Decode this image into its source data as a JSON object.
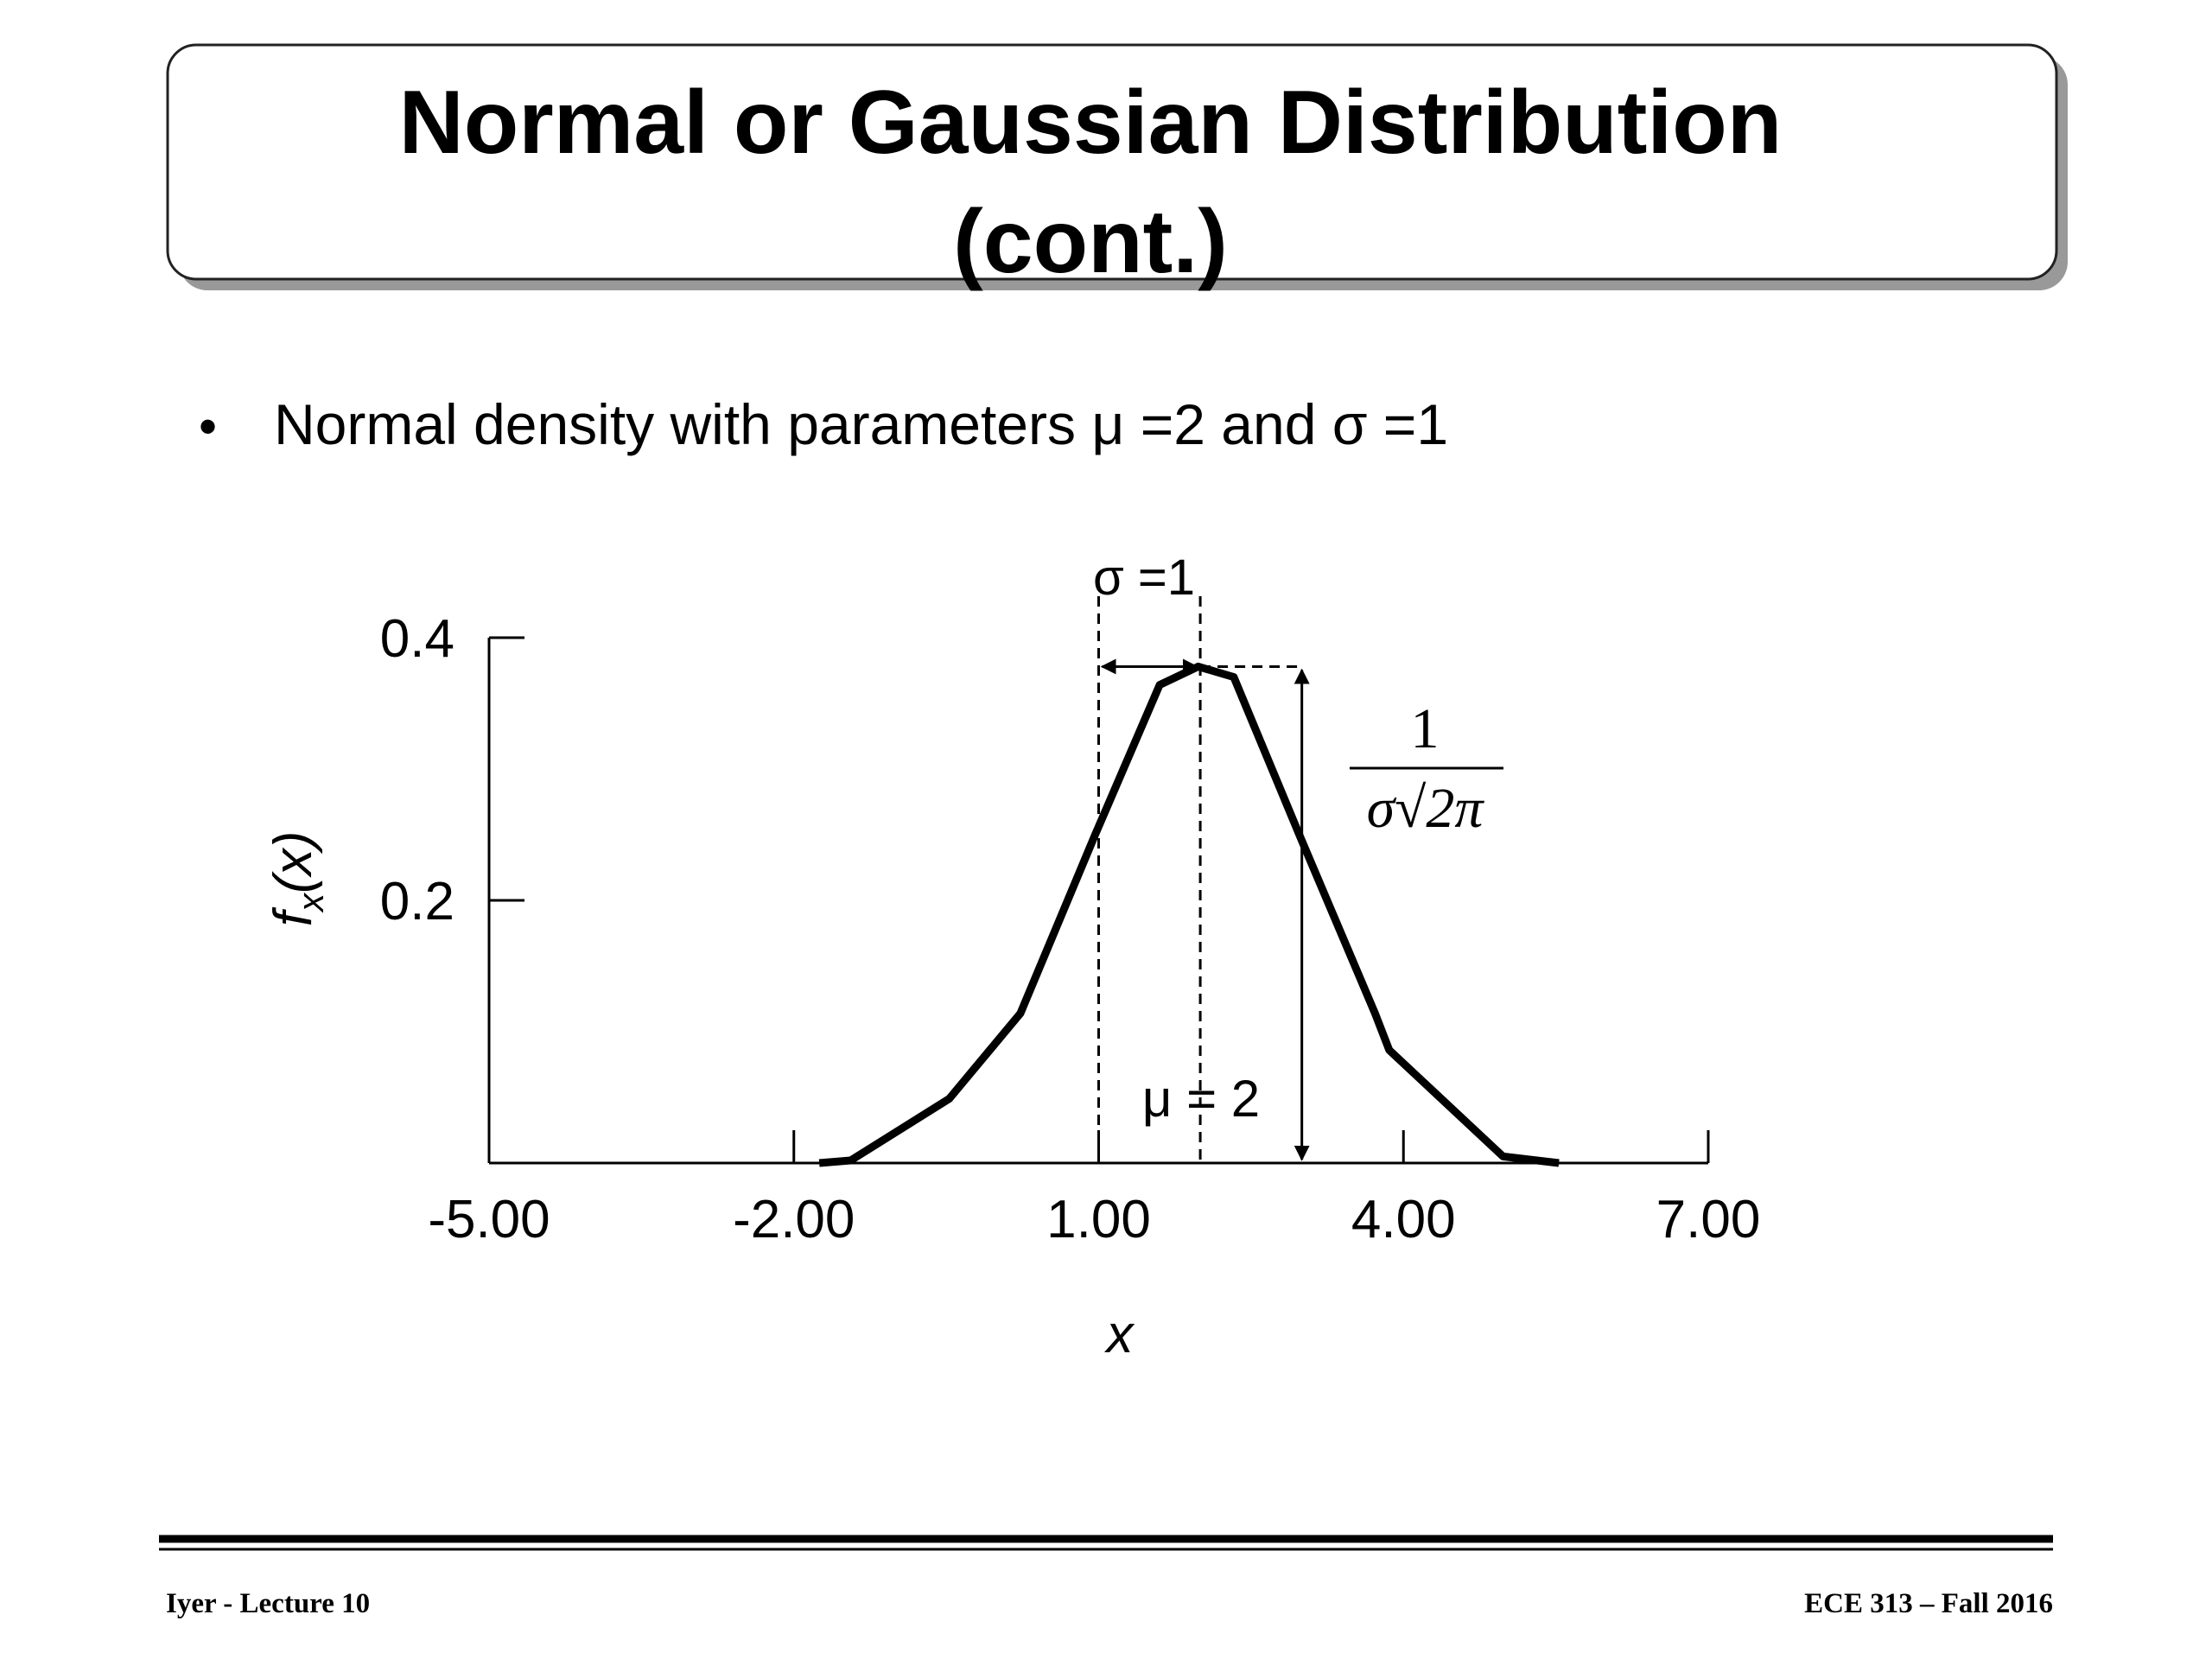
{
  "header": {
    "title": [
      "Normal or Gaussian Distribution",
      "(cont.)"
    ]
  },
  "bullets": [
    {
      "marker": "•",
      "text": "Normal density with parameters μ =2 and σ =1"
    }
  ],
  "chart_data": {
    "type": "line",
    "x": [
      -1.75,
      -1.44,
      -0.47,
      0.23,
      0.96,
      1.6,
      1.98,
      2.33,
      2.98,
      3.72,
      3.86,
      4.98,
      5.53
    ],
    "series": [
      {
        "color": "#000000",
        "values": [
          0,
          0.002,
          0.049,
          0.114,
          0.249,
          0.364,
          0.378,
          0.37,
          0.249,
          0.114,
          0.086,
          0.005,
          0
        ]
      }
    ],
    "xlim": [
      -5,
      7
    ],
    "xticks": [
      {
        "value": -5,
        "label": "-5.00"
      },
      {
        "value": -2,
        "label": "-2.00"
      },
      {
        "value": 1,
        "label": "1.00"
      },
      {
        "value": 4,
        "label": "4.00"
      },
      {
        "value": 7,
        "label": "7.00"
      }
    ],
    "ylim": [
      0,
      0.4
    ],
    "yticks": [
      0.2,
      0.4
    ],
    "xlabel": "x",
    "ylabel": [
      "f",
      "x",
      "(x)"
    ],
    "dashed_x": [
      1,
      2
    ],
    "arrow_x": 3,
    "annotations": {
      "sigma": "σ =1",
      "mu": "μ = 2",
      "numerator": "1",
      "denominator": "σ√2π"
    }
  },
  "footer": {
    "left": "Iyer  - Lecture 10",
    "right": "ECE 313 – Fall 2016"
  }
}
